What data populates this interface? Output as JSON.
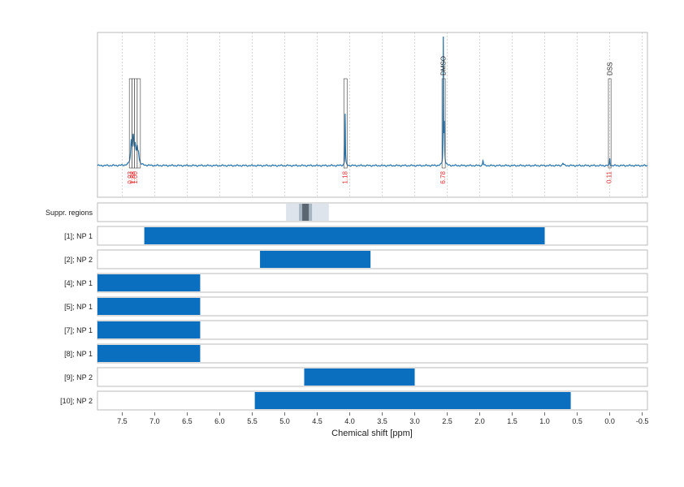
{
  "chart_data": {
    "type": "nmr-spectrum-with-range-tracks",
    "xlabel": "Chemical shift [ppm]",
    "xlim": [
      7.88,
      -0.58
    ],
    "x_ticks": [
      7.5,
      7.0,
      6.5,
      6.0,
      5.5,
      5.0,
      4.5,
      4.0,
      3.5,
      3.0,
      2.5,
      2.0,
      1.5,
      1.0,
      0.5,
      0.0,
      -0.5
    ],
    "x_tick_labels": [
      "7.5",
      "7.0",
      "6.5",
      "6.0",
      "5.5",
      "5.0",
      "4.5",
      "4.0",
      "3.5",
      "3.0",
      "2.5",
      "2.0",
      "1.5",
      "1.0",
      "0.5",
      "0.0",
      "-0.5"
    ],
    "grid": "vertical dotted",
    "colors": {
      "spectrum": "#1f6fa8",
      "bar": "#0a6fbe",
      "integral_label": "#e03030",
      "suppr_light": "#dde4ec",
      "suppr_mid": "#a8b6c3",
      "suppr_dark": "#5a6672"
    },
    "spectrum": {
      "peaks": [
        {
          "ppm": 7.36,
          "height": 0.26,
          "width": 0.012
        },
        {
          "ppm": 7.33,
          "height": 0.32,
          "width": 0.012
        },
        {
          "ppm": 7.3,
          "height": 0.2,
          "width": 0.012
        },
        {
          "ppm": 7.27,
          "height": 0.17,
          "width": 0.012
        },
        {
          "ppm": 7.25,
          "height": 0.12,
          "width": 0.012
        },
        {
          "ppm": 4.07,
          "height": 0.64,
          "width": 0.004
        },
        {
          "ppm": 2.56,
          "height": 1.52,
          "width": 0.003
        },
        {
          "ppm": 2.545,
          "height": 0.5,
          "width": 0.006
        },
        {
          "ppm": 1.95,
          "height": 0.06,
          "width": 0.006
        },
        {
          "ppm": 0.72,
          "height": 0.03,
          "width": 0.01
        },
        {
          "ppm": 0.0,
          "height": 0.09,
          "width": 0.004
        }
      ],
      "integrals": [
        {
          "from": 7.39,
          "to": 7.35,
          "label": "0.93"
        },
        {
          "from": 7.35,
          "to": 7.31,
          "label": "1.88"
        },
        {
          "from": 7.31,
          "to": 7.27,
          "label": "1.00"
        },
        {
          "from": 7.27,
          "to": 7.22,
          "label": ""
        },
        {
          "from": 4.09,
          "to": 4.04,
          "label": "1.18"
        },
        {
          "from": 2.58,
          "to": 2.53,
          "label": "6.78"
        },
        {
          "from": 0.02,
          "to": -0.02,
          "label": "0.11"
        }
      ],
      "annotations": [
        {
          "ppm": 2.56,
          "label": "DMSO"
        },
        {
          "ppm": 0.0,
          "label": "DSS"
        }
      ]
    },
    "tracks": [
      {
        "label": "Suppr. regions",
        "type": "suppression",
        "layers": [
          {
            "from": 4.98,
            "to": 4.32,
            "level": "light"
          },
          {
            "from": 4.78,
            "to": 4.58,
            "level": "mid"
          },
          {
            "from": 4.73,
            "to": 4.63,
            "level": "dark"
          }
        ]
      },
      {
        "label": "[1]; NP 1",
        "from": 7.16,
        "to": 1.0
      },
      {
        "label": "[2]; NP 2",
        "from": 5.38,
        "to": 3.68
      },
      {
        "label": "[4]; NP 1",
        "from": 7.88,
        "to": 6.3
      },
      {
        "label": "[5]; NP 1",
        "from": 7.88,
        "to": 6.3
      },
      {
        "label": "[7]; NP 1",
        "from": 7.88,
        "to": 6.3
      },
      {
        "label": "[8]; NP 1",
        "from": 7.88,
        "to": 6.3
      },
      {
        "label": "[9]; NP 2",
        "from": 4.7,
        "to": 3.0
      },
      {
        "label": "[10]; NP 2",
        "from": 5.46,
        "to": 0.6
      }
    ]
  }
}
